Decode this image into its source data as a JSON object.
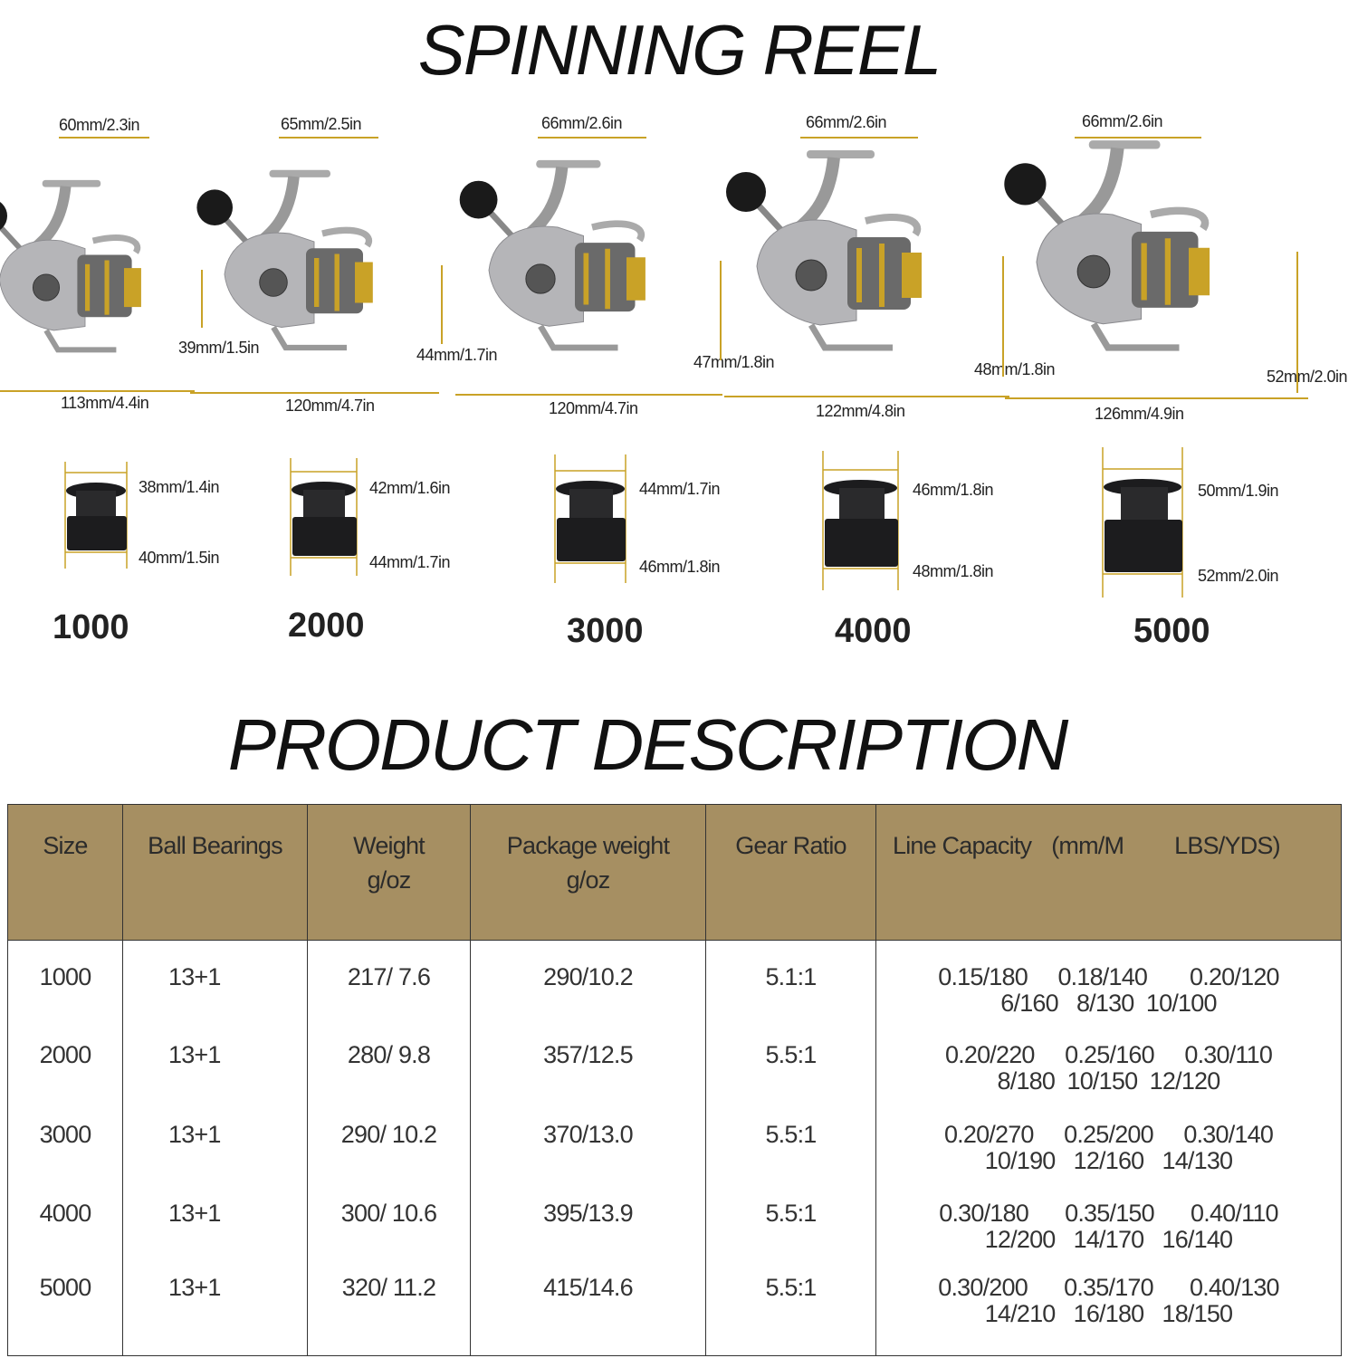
{
  "header": {
    "title": "SPINNING REEL"
  },
  "reels": [
    {
      "size": "1000",
      "width": "60mm/2.3in",
      "height": "39mm/1.5in",
      "length": "113mm/4.4in",
      "spool_top": "38mm/1.4in",
      "spool_bottom": "40mm/1.5in"
    },
    {
      "size": "2000",
      "width": "65mm/2.5in",
      "height": "44mm/1.7in",
      "length": "120mm/4.7in",
      "spool_top": "42mm/1.6in",
      "spool_bottom": "44mm/1.7in"
    },
    {
      "size": "3000",
      "width": "66mm/2.6in",
      "height": "47mm/1.8in",
      "length": "120mm/4.7in",
      "spool_top": "44mm/1.7in",
      "spool_bottom": "46mm/1.8in"
    },
    {
      "size": "4000",
      "width": "66mm/2.6in",
      "height": "48mm/1.8in",
      "length": "122mm/4.8in",
      "spool_top": "46mm/1.8in",
      "spool_bottom": "48mm/1.8in"
    },
    {
      "size": "5000",
      "width": "66mm/2.6in",
      "height": "52mm/2.0in",
      "length": "126mm/4.9in",
      "spool_top": "50mm/1.9in",
      "spool_bottom": "52mm/2.0in"
    }
  ],
  "section2": {
    "title": "PRODUCT DESCRIPTION"
  },
  "colors": {
    "header_bg": "#a68f62",
    "reel_silver": "#b5b5b8",
    "reel_gold": "#c9a227",
    "spool_black": "#1c1c1e"
  },
  "table": {
    "headers": {
      "size": "Size",
      "bearings": "Ball Bearings",
      "weight": "Weight",
      "weight_unit": "g/oz",
      "package": "Package weight",
      "package_unit": "g/oz",
      "gear": "Gear Ratio",
      "line": "Line Capacity",
      "line_mm": "(mm/M",
      "line_lbs": "LBS/YDS)"
    },
    "rows": [
      {
        "size": "1000",
        "bearings": "13+1",
        "weight": "217/ 7.6",
        "package": "290/10.2",
        "gear": "5.1:1",
        "mm": "0.15/180     0.18/140       0.20/120",
        "lbs": "6/160   8/130  10/100"
      },
      {
        "size": "2000",
        "bearings": "13+1",
        "weight": "280/ 9.8",
        "package": "357/12.5",
        "gear": "5.5:1",
        "mm": "0.20/220     0.25/160     0.30/110",
        "lbs": "8/180  10/150  12/120"
      },
      {
        "size": "3000",
        "bearings": "13+1",
        "weight": "290/ 10.2",
        "package": "370/13.0",
        "gear": "5.5:1",
        "mm": "0.20/270     0.25/200     0.30/140",
        "lbs": "10/190   12/160   14/130"
      },
      {
        "size": "4000",
        "bearings": "13+1",
        "weight": "300/ 10.6",
        "package": "395/13.9",
        "gear": "5.5:1",
        "mm": "0.30/180      0.35/150      0.40/110",
        "lbs": "12/200   14/170   16/140"
      },
      {
        "size": "5000",
        "bearings": "13+1",
        "weight": "320/ 11.2",
        "package": "415/14.6",
        "gear": "5.5:1",
        "mm": "0.30/200      0.35/170      0.40/130",
        "lbs": "14/210   16/180   18/150"
      }
    ]
  }
}
